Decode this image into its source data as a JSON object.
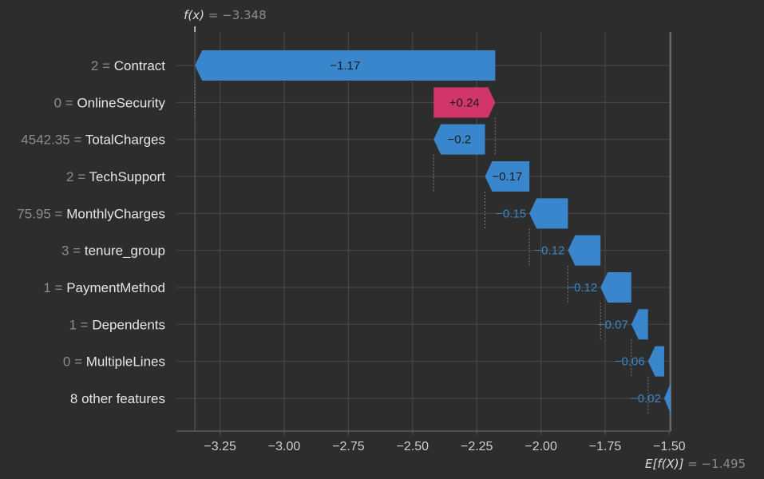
{
  "colors": {
    "background": "#2d2d2d",
    "grid": "#4a4a4a",
    "axis": "#5a5a5a",
    "negative": "#3a86cc",
    "positive": "#d2356a",
    "label_dark": "#1b1b1b",
    "label_blue": "#3a86cc",
    "feature_value": "#8c8c8c",
    "feature_name": "#e6e6e6",
    "tick": "#d0d0d0",
    "annotation": "#8c8c8c"
  },
  "chart_data": {
    "type": "waterfall",
    "base_value": -1.495,
    "output_value": -3.348,
    "top_annotation": {
      "fx": "f(x)",
      "value": "= −3.348"
    },
    "bottom_annotation": {
      "efx": "E[f(X)]",
      "value": "= −1.495"
    },
    "xlim": [
      -3.42,
      -1.495
    ],
    "x_ticks": [
      -3.25,
      -3.0,
      -2.75,
      -2.5,
      -2.25,
      -2.0,
      -1.75,
      -1.5
    ],
    "x_tick_labels": [
      "−3.25",
      "−3.00",
      "−2.75",
      "−2.50",
      "−2.25",
      "−2.00",
      "−1.75",
      "−1.50"
    ],
    "features": [
      {
        "value": "2",
        "name": "Contract",
        "shap": -1.17,
        "label": "−1.17",
        "start": -2.178,
        "end": -3.348
      },
      {
        "value": "0",
        "name": "OnlineSecurity",
        "shap": 0.24,
        "label": "+0.24",
        "start": -2.418,
        "end": -2.178
      },
      {
        "value": "4542.35",
        "name": "TotalCharges",
        "shap": -0.2,
        "label": "−0.2",
        "start": -2.218,
        "end": -2.418
      },
      {
        "value": "2",
        "name": "TechSupport",
        "shap": -0.17,
        "label": "−0.17",
        "start": -2.045,
        "end": -2.218
      },
      {
        "value": "75.95",
        "name": "MonthlyCharges",
        "shap": -0.15,
        "label": "−0.15",
        "start": -1.895,
        "end": -2.045
      },
      {
        "value": "3",
        "name": "tenure_group",
        "shap": -0.12,
        "label": "−0.12",
        "start": -1.768,
        "end": -1.895
      },
      {
        "value": "1",
        "name": "PaymentMethod",
        "shap": -0.12,
        "label": "−0.12",
        "start": -1.648,
        "end": -1.768
      },
      {
        "value": "1",
        "name": "Dependents",
        "shap": -0.07,
        "label": "−0.07",
        "start": -1.583,
        "end": -1.648
      },
      {
        "value": "0",
        "name": "MultipleLines",
        "shap": -0.06,
        "label": "−0.06",
        "start": -1.52,
        "end": -1.583
      },
      {
        "value": "",
        "name": "8 other features",
        "shap": -0.02,
        "label": "−0.02",
        "start": -1.495,
        "end": -1.52
      }
    ]
  }
}
